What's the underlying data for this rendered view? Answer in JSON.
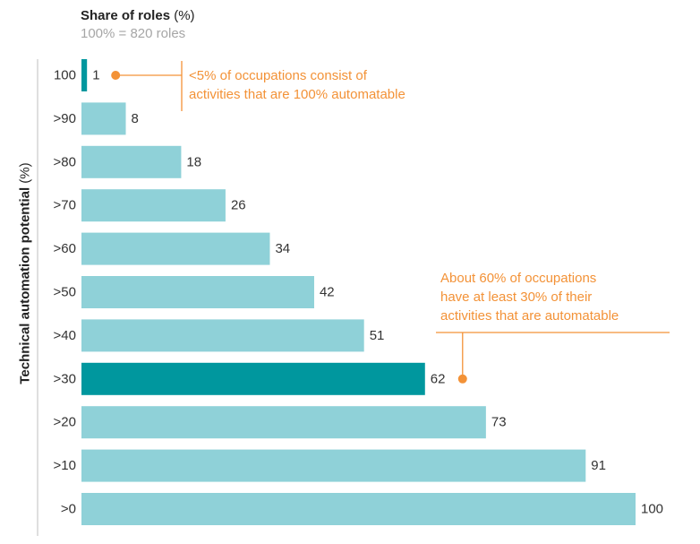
{
  "chart_data": {
    "type": "bar",
    "orientation": "horizontal",
    "title": "Share of roles",
    "title_unit": "(%)",
    "subtitle": "100% = 820 roles",
    "ylabel_main": "Technical automation potential",
    "ylabel_unit": "(%)",
    "categories": [
      "100",
      ">90",
      ">80",
      ">70",
      ">60",
      ">50",
      ">40",
      ">30",
      ">20",
      ">10",
      ">0"
    ],
    "values": [
      1,
      8,
      18,
      26,
      34,
      42,
      51,
      62,
      73,
      91,
      100
    ],
    "highlighted": [
      "100",
      ">30"
    ],
    "xlim": [
      0,
      100
    ],
    "grid": false,
    "colors": {
      "bar": "#8fd1d8",
      "highlight": "#00979e",
      "annotation": "#f39237",
      "axis": "#bfbfbf"
    },
    "annotations": [
      {
        "target": "100",
        "lines": [
          "<5% of occupations consist of",
          "activities that are 100% automatable"
        ]
      },
      {
        "target": ">30",
        "lines": [
          "About 60% of occupations",
          "have at least 30% of their",
          "activities that are automatable"
        ]
      }
    ]
  }
}
